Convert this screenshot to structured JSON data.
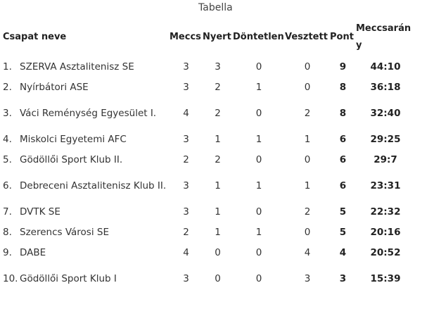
{
  "caption": "Tabella",
  "headers": {
    "team": "Csapat neve",
    "played": "Meccs",
    "won": "Nyert",
    "drawn": "Döntetlen",
    "lost": "Vesztett",
    "points": "Pont",
    "ratio": "Meccsarány"
  },
  "rows": [
    {
      "rank": "1.",
      "team": "SZERVA Asztalitenisz SE",
      "played": "3",
      "won": "3",
      "drawn": "0",
      "lost": "0",
      "points": "9",
      "ratio": "44:10"
    },
    {
      "rank": "2.",
      "team": "Nyírbátori ASE",
      "played": "3",
      "won": "2",
      "drawn": "1",
      "lost": "0",
      "points": "8",
      "ratio": "36:18"
    },
    {
      "rank": "3.",
      "team": "Váci Reménység Egyesület I.",
      "played": "4",
      "won": "2",
      "drawn": "0",
      "lost": "2",
      "points": "8",
      "ratio": "32:40"
    },
    {
      "rank": "4.",
      "team": "Miskolci Egyetemi AFC",
      "played": "3",
      "won": "1",
      "drawn": "1",
      "lost": "1",
      "points": "6",
      "ratio": "29:25"
    },
    {
      "rank": "5.",
      "team": "Gödöllői Sport Klub II.",
      "played": "2",
      "won": "2",
      "drawn": "0",
      "lost": "0",
      "points": "6",
      "ratio": "29:7"
    },
    {
      "rank": "6.",
      "team": "Debreceni Asztalitenisz Klub II.",
      "played": "3",
      "won": "1",
      "drawn": "1",
      "lost": "1",
      "points": "6",
      "ratio": "23:31"
    },
    {
      "rank": "7.",
      "team": "DVTK SE",
      "played": "3",
      "won": "1",
      "drawn": "0",
      "lost": "2",
      "points": "5",
      "ratio": "22:32"
    },
    {
      "rank": "8.",
      "team": "Szerencs Városi SE",
      "played": "2",
      "won": "1",
      "drawn": "1",
      "lost": "0",
      "points": "5",
      "ratio": "20:16"
    },
    {
      "rank": "9.",
      "team": "DABE",
      "played": "4",
      "won": "0",
      "drawn": "0",
      "lost": "4",
      "points": "4",
      "ratio": "20:52"
    },
    {
      "rank": "10.",
      "team": "Gödöllői Sport Klub I",
      "played": "3",
      "won": "0",
      "drawn": "0",
      "lost": "3",
      "points": "3",
      "ratio": "15:39"
    }
  ]
}
